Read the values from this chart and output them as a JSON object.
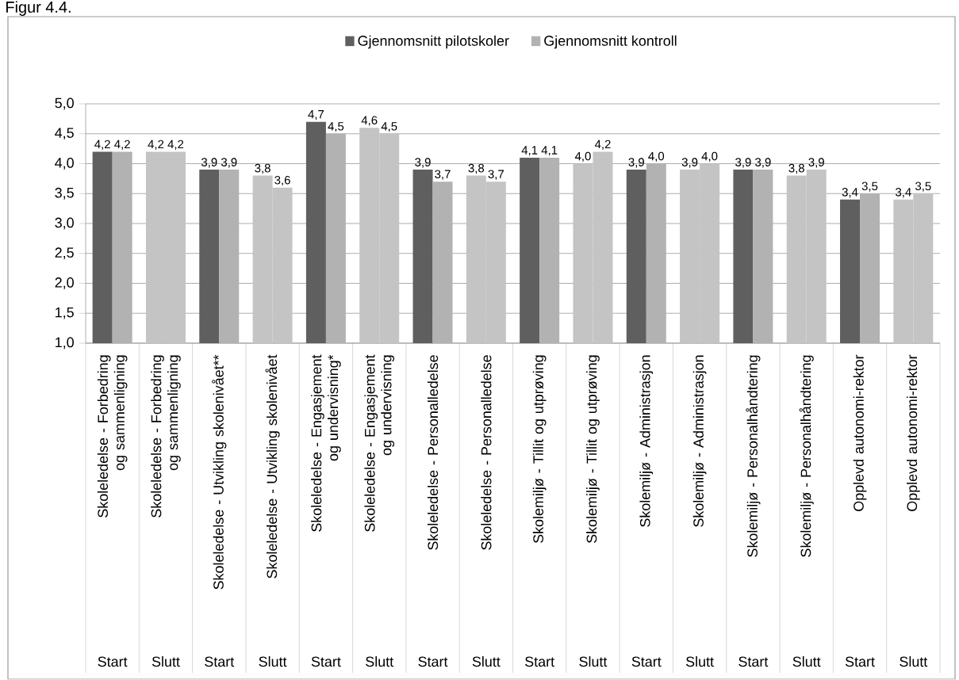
{
  "chart_data": {
    "type": "bar",
    "title": "Figur 4.4.",
    "categories": [
      "Skoleledelse - Forbedring og sammenligning",
      "Skoleledelse - Forbedring og sammenligning",
      "Skoleledelse - Utvikling skolenivået**",
      "Skoleledelse - Utvikling skolenivået",
      "Skoleledelse - Engasjement og undervisning*",
      "Skoleledelse - Engasjement og undervisning",
      "Skoleledelse - Personalledelse",
      "Skoleledelse - Personalledelse",
      "Skolemiljø - Tillit og utprøving",
      "Skolemiljø - Tillit og utprøving",
      "Skolemiljø - Administrasjon",
      "Skolemiljø - Administrasjon",
      "Skolemiljø - Personalhåndtering",
      "Skolemiljø - Personalhåndtering",
      "Opplevd autonomi-rektor",
      "Opplevd autonomi-rektor"
    ],
    "annotations": [
      "Start",
      "Slutt",
      "Start",
      "Slutt",
      "Start",
      "Slutt",
      "Start",
      "Slutt",
      "Start",
      "Slutt",
      "Start",
      "Slutt",
      "Start",
      "Slutt",
      "Start",
      "Slutt"
    ],
    "series": [
      {
        "name": "Gjennomsnitt pilotskoler",
        "color": "#5f5f5f",
        "colors": [
          "#5f5f5f",
          "#c4c4c4",
          "#5f5f5f",
          "#c4c4c4",
          "#5f5f5f",
          "#c4c4c4",
          "#5f5f5f",
          "#c4c4c4",
          "#5f5f5f",
          "#c4c4c4",
          "#5f5f5f",
          "#c4c4c4",
          "#5f5f5f",
          "#c4c4c4",
          "#5f5f5f",
          "#c4c4c4"
        ],
        "values": [
          4.2,
          4.2,
          3.9,
          3.8,
          4.7,
          4.6,
          3.9,
          3.8,
          4.1,
          4.0,
          3.9,
          3.9,
          3.9,
          3.8,
          3.4,
          3.4
        ],
        "value_labels": [
          "4,2",
          "4,2",
          "3,9",
          "3,8",
          "4,7",
          "4,6",
          "3,9",
          "3,8",
          "4,1",
          "4,0",
          "3,9",
          "3,9",
          "3,9",
          "3,8",
          "3,4",
          "3,4"
        ]
      },
      {
        "name": "Gjennomsnitt kontroll",
        "color": "#b2b2b2",
        "colors": [
          "#b2b2b2",
          "#c4c4c4",
          "#b2b2b2",
          "#c4c4c4",
          "#b2b2b2",
          "#c4c4c4",
          "#b2b2b2",
          "#c4c4c4",
          "#b2b2b2",
          "#c4c4c4",
          "#b2b2b2",
          "#c4c4c4",
          "#b2b2b2",
          "#c4c4c4",
          "#b2b2b2",
          "#c4c4c4"
        ],
        "values": [
          4.2,
          4.2,
          3.9,
          3.6,
          4.5,
          4.5,
          3.7,
          3.7,
          4.1,
          4.2,
          4.0,
          4.0,
          3.9,
          3.9,
          3.5,
          3.5
        ],
        "value_labels": [
          "4,2",
          "4,2",
          "3,9",
          "3,6",
          "4,5",
          "4,5",
          "3,7",
          "3,7",
          "4,1",
          "4,2",
          "4,0",
          "4,0",
          "3,9",
          "3,9",
          "3,5",
          "3,5"
        ]
      }
    ],
    "ylim": [
      1,
      5
    ],
    "yticks": [
      {
        "value": 1,
        "label": "1,0"
      },
      {
        "value": 1.5,
        "label": "1,5"
      },
      {
        "value": 2,
        "label": "2,0"
      },
      {
        "value": 2.5,
        "label": "2,5"
      },
      {
        "value": 3,
        "label": "3,0"
      },
      {
        "value": 3.5,
        "label": "3,5"
      },
      {
        "value": 4,
        "label": "4,0"
      },
      {
        "value": 4.5,
        "label": "4,5"
      },
      {
        "value": 5,
        "label": "5,0"
      }
    ],
    "grid": "y",
    "legend": "top"
  }
}
